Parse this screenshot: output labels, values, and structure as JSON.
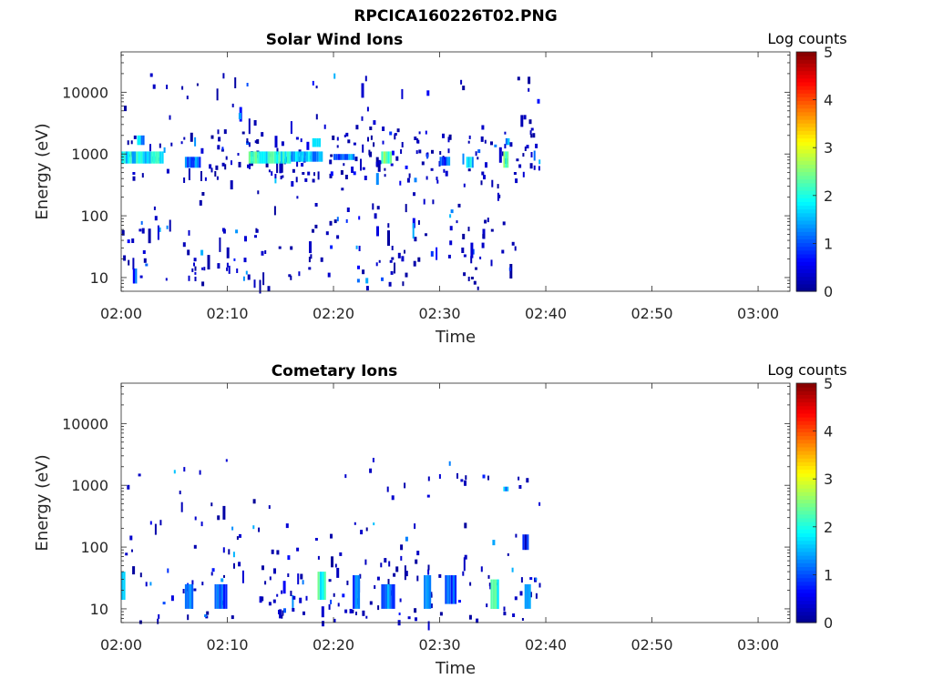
{
  "figure": {
    "title": "RPCICA160226T02.PNG"
  },
  "colormap": [
    "#00008f",
    "#0000ff",
    "#0080ff",
    "#00ffff",
    "#80ff80",
    "#ffff00",
    "#ff8000",
    "#ff0000",
    "#800000"
  ],
  "chart_data": [
    {
      "type": "heatmap",
      "title": "Solar Wind Ions",
      "xlabel": "Time",
      "ylabel": "Energy (eV)",
      "colorbar_label": "Log counts",
      "x_range_minutes": [
        0,
        63
      ],
      "x_ticks": [
        0,
        10,
        20,
        30,
        40,
        50,
        60
      ],
      "x_tick_labels": [
        "02:00",
        "02:10",
        "02:20",
        "02:30",
        "02:40",
        "02:50",
        "03:00"
      ],
      "y_scale": "log",
      "y_range": [
        6,
        45000
      ],
      "y_ticks": [
        10,
        100,
        1000,
        10000
      ],
      "y_tick_labels": [
        "10",
        "100",
        "1000",
        "10000"
      ],
      "c_range": [
        0,
        5
      ],
      "c_ticks": [
        0,
        1,
        2,
        3,
        4,
        5
      ],
      "c_tick_labels": [
        "0",
        "1",
        "2",
        "3",
        "4",
        "5"
      ],
      "bands": [
        {
          "t0": 0,
          "t1": 4,
          "e0": 700,
          "e1": 1100,
          "c": 1.8
        },
        {
          "t0": 1.5,
          "t1": 2.2,
          "e0": 1400,
          "e1": 2000,
          "c": 1.5
        },
        {
          "t0": 6,
          "t1": 7.5,
          "e0": 600,
          "e1": 900,
          "c": 1.2
        },
        {
          "t0": 12,
          "t1": 16,
          "e0": 700,
          "e1": 1100,
          "c": 2.0
        },
        {
          "t0": 16,
          "t1": 19,
          "e0": 750,
          "e1": 1100,
          "c": 1.5
        },
        {
          "t0": 18,
          "t1": 18.8,
          "e0": 1300,
          "e1": 1800,
          "c": 1.8
        },
        {
          "t0": 20,
          "t1": 22,
          "e0": 800,
          "e1": 1000,
          "c": 1.2
        },
        {
          "t0": 24.5,
          "t1": 25.5,
          "e0": 700,
          "e1": 1100,
          "c": 2.2
        },
        {
          "t0": 30,
          "t1": 31,
          "e0": 650,
          "e1": 900,
          "c": 1.0
        },
        {
          "t0": 32.5,
          "t1": 33.2,
          "e0": 600,
          "e1": 900,
          "c": 1.6
        },
        {
          "t0": 36,
          "t1": 36.5,
          "e0": 600,
          "e1": 1100,
          "c": 2.3
        },
        {
          "t0": 36.2,
          "t1": 36.6,
          "e0": 1400,
          "e1": 1800,
          "c": 1.5
        },
        {
          "t0": 1.1,
          "t1": 1.5,
          "e0": 8,
          "e1": 14,
          "c": 0.8
        }
      ]
    },
    {
      "type": "heatmap",
      "title": "Cometary Ions",
      "xlabel": "Time",
      "ylabel": "Energy (eV)",
      "colorbar_label": "Log counts",
      "x_range_minutes": [
        0,
        63
      ],
      "x_ticks": [
        0,
        10,
        20,
        30,
        40,
        50,
        60
      ],
      "x_tick_labels": [
        "02:00",
        "02:10",
        "02:20",
        "02:30",
        "02:40",
        "02:50",
        "03:00"
      ],
      "y_scale": "log",
      "y_range": [
        6,
        45000
      ],
      "y_ticks": [
        10,
        100,
        1000,
        10000
      ],
      "y_tick_labels": [
        "10",
        "100",
        "1000",
        "10000"
      ],
      "c_range": [
        0,
        5
      ],
      "c_ticks": [
        0,
        1,
        2,
        3,
        4,
        5
      ],
      "c_tick_labels": [
        "0",
        "1",
        "2",
        "3",
        "4",
        "5"
      ],
      "bands": [
        {
          "t0": 0,
          "t1": 0.4,
          "e0": 14,
          "e1": 40,
          "c": 1.8
        },
        {
          "t0": 6,
          "t1": 6.8,
          "e0": 10,
          "e1": 25,
          "c": 1.2
        },
        {
          "t0": 8.8,
          "t1": 10,
          "e0": 10,
          "e1": 25,
          "c": 1.0
        },
        {
          "t0": 18.5,
          "t1": 19.3,
          "e0": 14,
          "e1": 40,
          "c": 2.0
        },
        {
          "t0": 21.8,
          "t1": 22.5,
          "e0": 10,
          "e1": 35,
          "c": 1.2
        },
        {
          "t0": 24.5,
          "t1": 25.8,
          "e0": 10,
          "e1": 25,
          "c": 1.2
        },
        {
          "t0": 28.5,
          "t1": 29.2,
          "e0": 10,
          "e1": 35,
          "c": 1.4
        },
        {
          "t0": 30.5,
          "t1": 31.6,
          "e0": 12,
          "e1": 35,
          "c": 1.0
        },
        {
          "t0": 34.8,
          "t1": 35.6,
          "e0": 10,
          "e1": 30,
          "c": 2.2
        },
        {
          "t0": 38,
          "t1": 38.6,
          "e0": 10,
          "e1": 25,
          "c": 1.2
        },
        {
          "t0": 37.8,
          "t1": 38.4,
          "e0": 90,
          "e1": 160,
          "c": 0.6
        },
        {
          "t0": 36,
          "t1": 36.5,
          "e0": 800,
          "e1": 950,
          "c": 1.3
        }
      ]
    }
  ]
}
